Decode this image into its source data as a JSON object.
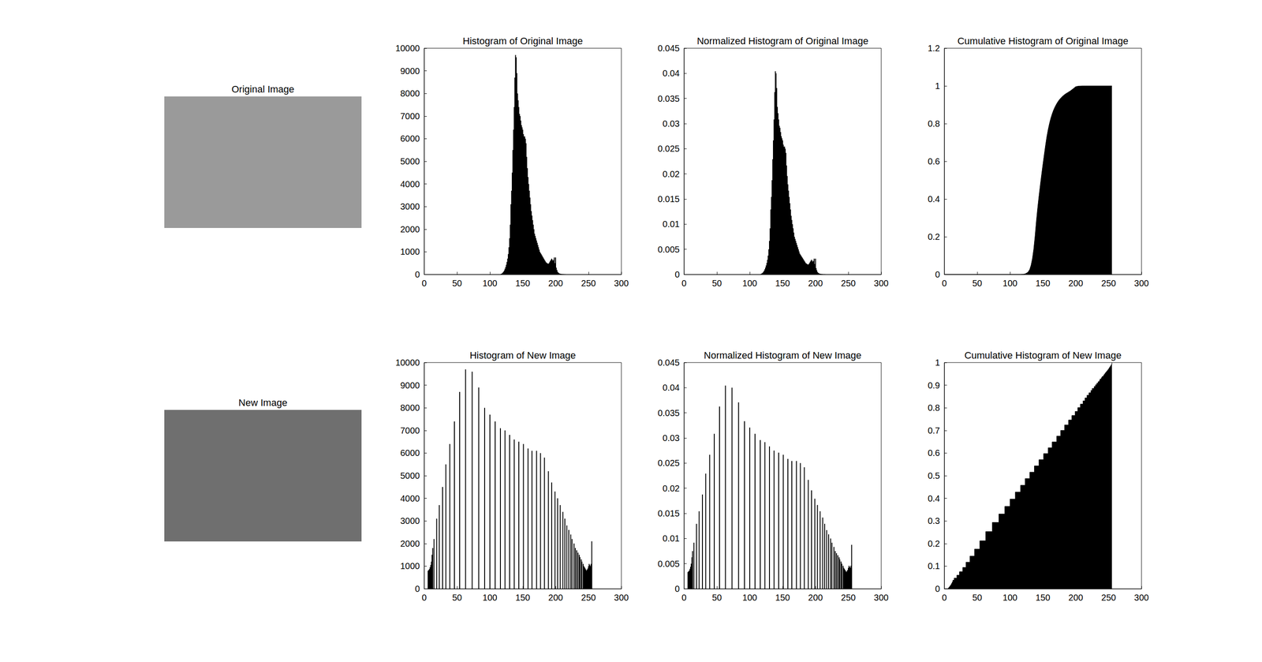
{
  "chart_data": [
    {
      "type": "bar",
      "title": "Histogram of Original Image",
      "color": "#000000",
      "grid": false,
      "xlim": [
        0,
        300
      ],
      "xticks": [
        0,
        50,
        100,
        150,
        200,
        250,
        300
      ],
      "ylim": [
        0,
        10000
      ],
      "yticks": [
        0,
        1000,
        2000,
        3000,
        4000,
        5000,
        6000,
        7000,
        8000,
        9000,
        10000
      ],
      "x": [
        117,
        118,
        119,
        120,
        121,
        122,
        123,
        124,
        125,
        126,
        127,
        128,
        129,
        130,
        131,
        132,
        133,
        134,
        135,
        136,
        137,
        138,
        139,
        140,
        141,
        142,
        143,
        144,
        145,
        146,
        147,
        148,
        149,
        150,
        151,
        152,
        153,
        154,
        155,
        156,
        157,
        158,
        159,
        160,
        161,
        162,
        163,
        164,
        165,
        166,
        167,
        168,
        169,
        170,
        171,
        172,
        173,
        174,
        175,
        176,
        177,
        178,
        179,
        180,
        181,
        182,
        183,
        184,
        185,
        186,
        187,
        188,
        189,
        190,
        191,
        192,
        193,
        194,
        195,
        196,
        197,
        198,
        199,
        200,
        201,
        202,
        203,
        204,
        205,
        206,
        207,
        208,
        209,
        210,
        211,
        212,
        213,
        214,
        215
      ],
      "values": [
        20,
        40,
        60,
        90,
        130,
        180,
        250,
        330,
        430,
        550,
        700,
        900,
        1200,
        1600,
        2200,
        3100,
        3700,
        4500,
        5500,
        6400,
        7400,
        8700,
        9700,
        9600,
        8900,
        8000,
        7700,
        7400,
        7100,
        7000,
        6800,
        6600,
        6500,
        6400,
        6200,
        6100,
        6100,
        6000,
        5800,
        5200,
        4700,
        4300,
        4000,
        3700,
        3400,
        3100,
        2800,
        2600,
        2400,
        2200,
        2000,
        1800,
        1700,
        1600,
        1500,
        1400,
        1300,
        1200,
        1100,
        1000,
        950,
        900,
        850,
        800,
        750,
        700,
        650,
        600,
        550,
        520,
        500,
        480,
        470,
        500,
        550,
        600,
        650,
        700,
        650,
        600,
        650,
        750,
        500,
        750,
        300,
        200,
        120,
        80,
        60,
        40,
        30,
        25,
        20,
        15,
        10,
        8,
        5,
        4,
        3
      ]
    },
    {
      "type": "bar",
      "title": "Normalized Histogram of Original Image",
      "color": "#000000",
      "grid": false,
      "xlim": [
        0,
        300
      ],
      "xticks": [
        0,
        50,
        100,
        150,
        200,
        250,
        300
      ],
      "ylim": [
        0,
        0.045
      ],
      "yticks": [
        0,
        0.005,
        0.01,
        0.015,
        0.02,
        0.025,
        0.03,
        0.035,
        0.04,
        0.045
      ],
      "x": [
        117,
        118,
        119,
        120,
        121,
        122,
        123,
        124,
        125,
        126,
        127,
        128,
        129,
        130,
        131,
        132,
        133,
        134,
        135,
        136,
        137,
        138,
        139,
        140,
        141,
        142,
        143,
        144,
        145,
        146,
        147,
        148,
        149,
        150,
        151,
        152,
        153,
        154,
        155,
        156,
        157,
        158,
        159,
        160,
        161,
        162,
        163,
        164,
        165,
        166,
        167,
        168,
        169,
        170,
        171,
        172,
        173,
        174,
        175,
        176,
        177,
        178,
        179,
        180,
        181,
        182,
        183,
        184,
        185,
        186,
        187,
        188,
        189,
        190,
        191,
        192,
        193,
        194,
        195,
        196,
        197,
        198,
        199,
        200,
        201,
        202,
        203,
        204,
        205,
        206,
        207,
        208,
        209,
        210,
        211,
        212,
        213,
        214,
        215
      ],
      "values": [
        8e-05,
        0.00017,
        0.00025,
        0.00038,
        0.00054,
        0.00075,
        0.00104,
        0.00138,
        0.00179,
        0.00229,
        0.00292,
        0.00375,
        0.005,
        0.00667,
        0.00917,
        0.01292,
        0.01542,
        0.01875,
        0.02292,
        0.02667,
        0.03083,
        0.03625,
        0.04042,
        0.04,
        0.03708,
        0.03333,
        0.03208,
        0.03083,
        0.02958,
        0.02917,
        0.02833,
        0.0275,
        0.02708,
        0.02667,
        0.02583,
        0.02542,
        0.02542,
        0.025,
        0.02417,
        0.02167,
        0.01958,
        0.01792,
        0.01667,
        0.01542,
        0.01417,
        0.01292,
        0.01167,
        0.01083,
        0.01,
        0.00917,
        0.00833,
        0.0075,
        0.00708,
        0.00667,
        0.00625,
        0.00583,
        0.00542,
        0.005,
        0.00458,
        0.00417,
        0.00396,
        0.00375,
        0.00354,
        0.00333,
        0.00313,
        0.00292,
        0.00271,
        0.0025,
        0.00229,
        0.00217,
        0.00208,
        0.002,
        0.00196,
        0.00208,
        0.00229,
        0.0025,
        0.00271,
        0.00292,
        0.00271,
        0.0025,
        0.00271,
        0.00313,
        0.00208,
        0.00313,
        0.00125,
        0.00083,
        0.0005,
        0.00033,
        0.00025,
        0.00017,
        0.000125,
        0.0001,
        8e-05,
        6e-05,
        4e-05,
        3e-05,
        2e-05,
        2e-05,
        1e-05
      ]
    },
    {
      "type": "area",
      "title": "Cumulative Histogram of Original Image",
      "color": "#000000",
      "grid": false,
      "line_style": "solid",
      "xlim": [
        0,
        300
      ],
      "xticks": [
        0,
        50,
        100,
        150,
        200,
        250,
        300
      ],
      "ylim": [
        0,
        1.2
      ],
      "yticks": [
        0,
        0.2,
        0.4,
        0.6,
        0.8,
        1,
        1.2
      ],
      "x": [
        0,
        116,
        120,
        123,
        126,
        128,
        130,
        132,
        134,
        136,
        138,
        140,
        142,
        144,
        146,
        148,
        150,
        152,
        154,
        156,
        158,
        160,
        162,
        164,
        166,
        168,
        170,
        172,
        174,
        176,
        178,
        180,
        184,
        188,
        192,
        196,
        200,
        204,
        210,
        215,
        255
      ],
      "values": [
        0,
        0,
        0.0009,
        0.0032,
        0.0087,
        0.0154,
        0.0271,
        0.0492,
        0.0835,
        0.1332,
        0.2004,
        0.281,
        0.3516,
        0.4147,
        0.4736,
        0.5295,
        0.5834,
        0.6348,
        0.6853,
        0.7313,
        0.7689,
        0.801,
        0.8282,
        0.8507,
        0.8699,
        0.8858,
        0.8996,
        0.9117,
        0.9221,
        0.9309,
        0.9386,
        0.9455,
        0.9568,
        0.9654,
        0.9742,
        0.9851,
        0.9962,
        0.9991,
        0.9999,
        1,
        1
      ]
    },
    {
      "type": "bar",
      "title": "Histogram of New Image",
      "color": "#000000",
      "grid": false,
      "xlim": [
        0,
        300
      ],
      "xticks": [
        0,
        50,
        100,
        150,
        200,
        250,
        300
      ],
      "ylim": [
        0,
        10000
      ],
      "yticks": [
        0,
        1000,
        2000,
        3000,
        4000,
        5000,
        6000,
        7000,
        8000,
        9000,
        10000
      ],
      "x": [
        6,
        7,
        8,
        9,
        10,
        11,
        12,
        13,
        15,
        19,
        23,
        28,
        33,
        39,
        46,
        54,
        63,
        73,
        83,
        92,
        100,
        108,
        116,
        123,
        130,
        137,
        144,
        151,
        158,
        164,
        171,
        177,
        183,
        189,
        194,
        199,
        203,
        207,
        211,
        214,
        217,
        220,
        223,
        225,
        228,
        230,
        232,
        234,
        236,
        237,
        239,
        240,
        242,
        243,
        244,
        245,
        246,
        247,
        248,
        249,
        250,
        251,
        252,
        253,
        254,
        255
      ],
      "values": [
        800,
        830,
        870,
        950,
        1050,
        1200,
        1500,
        1800,
        2200,
        3100,
        3700,
        4500,
        5500,
        6400,
        7400,
        8700,
        9700,
        9600,
        8900,
        8000,
        7700,
        7400,
        7100,
        7000,
        6800,
        6600,
        6500,
        6400,
        6200,
        6100,
        6100,
        6000,
        5800,
        5200,
        4700,
        4300,
        4000,
        3700,
        3400,
        3100,
        2800,
        2600,
        2400,
        2200,
        2000,
        1800,
        1700,
        1600,
        1500,
        1400,
        1300,
        1200,
        1100,
        1000,
        950,
        900,
        850,
        800,
        850,
        900,
        1000,
        1100,
        1050,
        1000,
        1100,
        2100
      ]
    },
    {
      "type": "bar",
      "title": "Normalized Histogram of New Image",
      "color": "#000000",
      "grid": false,
      "xlim": [
        0,
        300
      ],
      "xticks": [
        0,
        50,
        100,
        150,
        200,
        250,
        300
      ],
      "ylim": [
        0,
        0.045
      ],
      "yticks": [
        0,
        0.005,
        0.01,
        0.015,
        0.02,
        0.025,
        0.03,
        0.035,
        0.04,
        0.045
      ],
      "x": [
        6,
        7,
        8,
        9,
        10,
        11,
        12,
        13,
        15,
        19,
        23,
        28,
        33,
        39,
        46,
        54,
        63,
        73,
        83,
        92,
        100,
        108,
        116,
        123,
        130,
        137,
        144,
        151,
        158,
        164,
        171,
        177,
        183,
        189,
        194,
        199,
        203,
        207,
        211,
        214,
        217,
        220,
        223,
        225,
        228,
        230,
        232,
        234,
        236,
        237,
        239,
        240,
        242,
        243,
        244,
        245,
        246,
        247,
        248,
        249,
        250,
        251,
        252,
        253,
        254,
        255
      ],
      "values": [
        0.00333,
        0.00346,
        0.00363,
        0.00396,
        0.00438,
        0.005,
        0.00625,
        0.0075,
        0.00917,
        0.01292,
        0.01542,
        0.01875,
        0.02292,
        0.02667,
        0.03083,
        0.03625,
        0.04042,
        0.04,
        0.03708,
        0.03333,
        0.03208,
        0.03083,
        0.02958,
        0.02917,
        0.02833,
        0.0275,
        0.02708,
        0.02667,
        0.02583,
        0.02542,
        0.02542,
        0.025,
        0.02417,
        0.02167,
        0.01958,
        0.01792,
        0.01667,
        0.01542,
        0.01417,
        0.01292,
        0.01167,
        0.01083,
        0.01,
        0.00917,
        0.00833,
        0.0075,
        0.00708,
        0.00667,
        0.00625,
        0.00583,
        0.00542,
        0.005,
        0.00458,
        0.00417,
        0.00396,
        0.00375,
        0.00354,
        0.00333,
        0.00354,
        0.00375,
        0.00417,
        0.00458,
        0.00438,
        0.00417,
        0.00458,
        0.00875
      ]
    },
    {
      "type": "area",
      "title": "Cumulative Histogram of New Image",
      "color": "#000000",
      "grid": false,
      "line_style": "step",
      "xlim": [
        0,
        300
      ],
      "xticks": [
        0,
        50,
        100,
        150,
        200,
        250,
        300
      ],
      "ylim": [
        0,
        1
      ],
      "yticks": [
        0,
        0.1,
        0.2,
        0.3,
        0.4,
        0.5,
        0.6,
        0.7,
        0.8,
        0.9,
        1
      ],
      "x": [
        0,
        6,
        7,
        8,
        9,
        10,
        11,
        12,
        13,
        15,
        19,
        23,
        28,
        33,
        39,
        46,
        54,
        63,
        73,
        83,
        92,
        100,
        108,
        116,
        123,
        130,
        137,
        144,
        151,
        158,
        164,
        171,
        177,
        183,
        189,
        194,
        199,
        203,
        207,
        211,
        214,
        217,
        220,
        223,
        225,
        228,
        230,
        232,
        234,
        236,
        237,
        239,
        240,
        242,
        243,
        244,
        245,
        246,
        247,
        248,
        249,
        250,
        251,
        252,
        253,
        254,
        255
      ],
      "values": [
        0,
        0.0034,
        0.0068,
        0.0105,
        0.0145,
        0.0189,
        0.0239,
        0.0303,
        0.0378,
        0.0471,
        0.0601,
        0.0756,
        0.0945,
        0.1176,
        0.1445,
        0.1756,
        0.2122,
        0.2529,
        0.2933,
        0.3307,
        0.3643,
        0.3966,
        0.4277,
        0.4576,
        0.487,
        0.5155,
        0.5433,
        0.5706,
        0.5975,
        0.6235,
        0.6492,
        0.6748,
        0.7,
        0.7244,
        0.7462,
        0.766,
        0.784,
        0.8008,
        0.8164,
        0.8307,
        0.8437,
        0.8555,
        0.8664,
        0.8765,
        0.8857,
        0.8941,
        0.9017,
        0.9088,
        0.9155,
        0.9218,
        0.9277,
        0.9332,
        0.9382,
        0.9429,
        0.9471,
        0.951,
        0.9548,
        0.9584,
        0.9618,
        0.9653,
        0.9691,
        0.9733,
        0.9779,
        0.9824,
        0.9866,
        0.9912,
        1
      ]
    }
  ],
  "images": [
    {
      "title": "Original Image"
    },
    {
      "title": "New Image"
    }
  ]
}
